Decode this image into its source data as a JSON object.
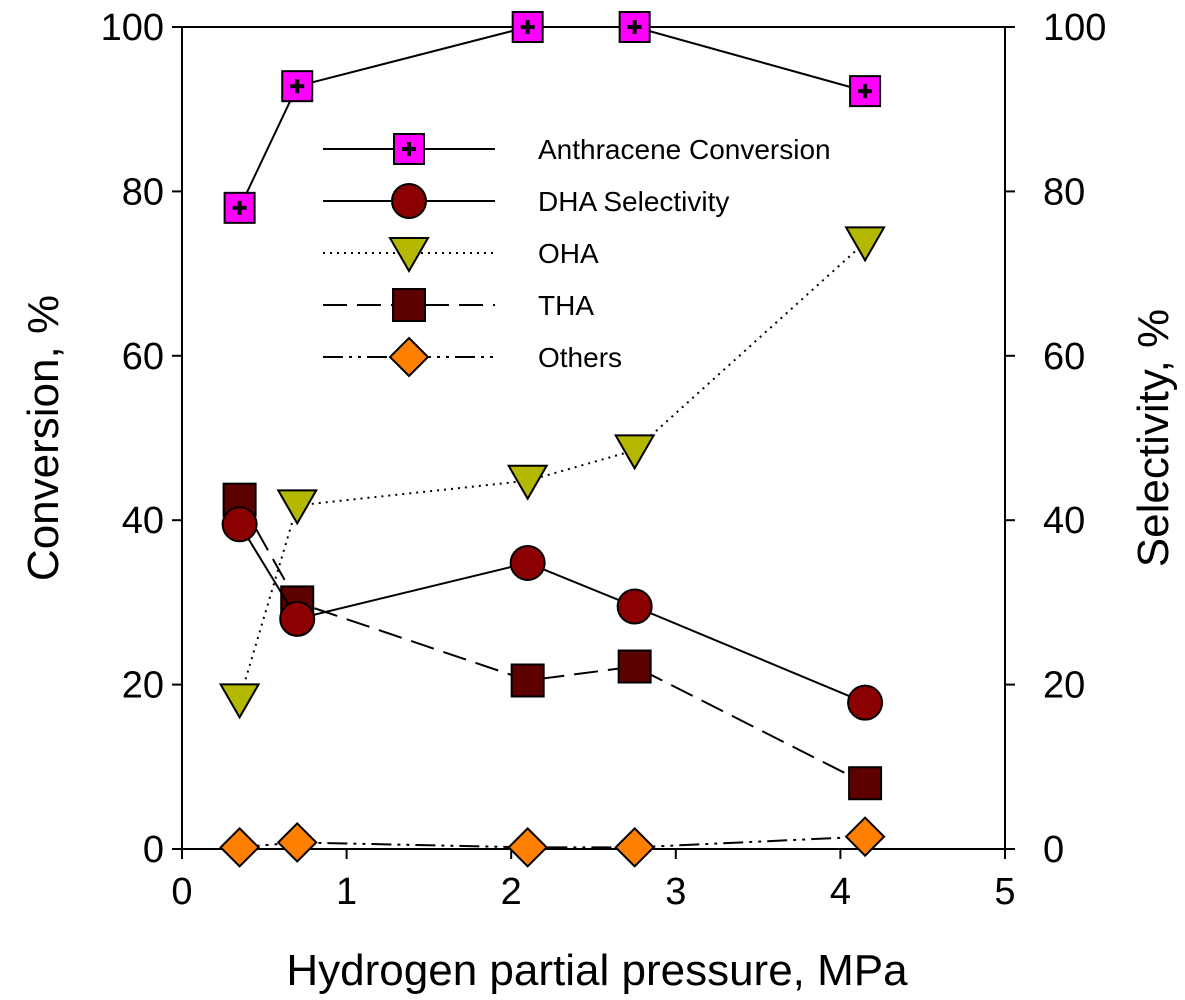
{
  "chart_data": {
    "type": "line",
    "x": [
      0.35,
      0.7,
      2.1,
      2.75,
      4.15
    ],
    "xlim": [
      0,
      5
    ],
    "ylim_left": [
      0,
      100
    ],
    "ylim_right": [
      0,
      100
    ],
    "xticks": [
      "0",
      "1",
      "2",
      "3",
      "4",
      "5"
    ],
    "yticks_left": [
      "0",
      "20",
      "40",
      "60",
      "80",
      "100"
    ],
    "yticks_right": [
      "0",
      "20",
      "40",
      "60",
      "80",
      "100"
    ],
    "xlabel": "Hydrogen partial pressure, MPa",
    "ylabel_left": "Conversion, %",
    "ylabel_right": "Selectivity, %",
    "legend_position": "upper-center",
    "series": [
      {
        "name": "Anthracene Conversion",
        "axis": "left",
        "marker": "square-plus",
        "line": "solid",
        "color": "#ff00ff",
        "values": [
          78,
          92.8,
          100,
          100,
          92.2
        ]
      },
      {
        "name": "DHA Selectivity",
        "axis": "right",
        "marker": "circle",
        "line": "solid",
        "color": "#8b0000",
        "values": [
          39.5,
          28,
          34.8,
          29.5,
          17.8
        ]
      },
      {
        "name": "OHA",
        "axis": "right",
        "marker": "triangle-down",
        "line": "dotted",
        "color": "#b5b800",
        "values": [
          18.2,
          41.8,
          44.8,
          48.5,
          73.8
        ]
      },
      {
        "name": "THA",
        "axis": "right",
        "marker": "square",
        "line": "dashed",
        "color": "#5c0000",
        "values": [
          42.5,
          30,
          20.5,
          22.2,
          8
        ]
      },
      {
        "name": "Others",
        "axis": "right",
        "marker": "diamond",
        "line": "dash-dot-dot",
        "color": "#ff8000",
        "values": [
          0.2,
          0.8,
          0.2,
          0.2,
          1.5
        ]
      }
    ]
  }
}
